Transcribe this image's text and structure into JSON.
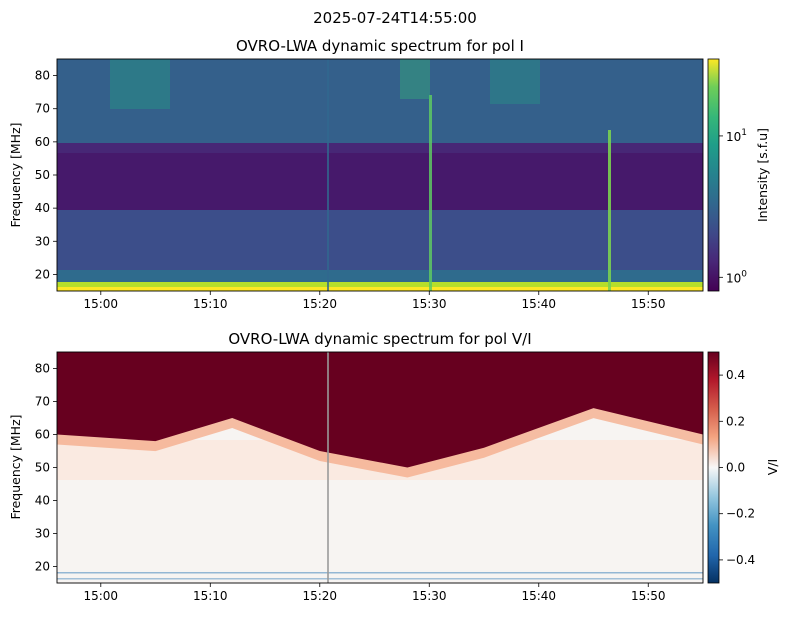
{
  "figure": {
    "suptitle": "2025-07-24T14:55:00"
  },
  "chart_data": [
    {
      "type": "heatmap",
      "title": "OVRO-LWA dynamic spectrum for pol I",
      "xlabel": "",
      "ylabel": "Frequency [MHz]",
      "x_range": [
        "14:56",
        "15:55"
      ],
      "ylim": [
        15,
        85
      ],
      "x_ticks": [
        "15:00",
        "15:10",
        "15:20",
        "15:30",
        "15:40",
        "15:50"
      ],
      "y_ticks": [
        20,
        30,
        40,
        50,
        60,
        70,
        80
      ],
      "colormap": "viridis",
      "colorbar": {
        "label": "Intensity [s.f.u]",
        "scale": "log",
        "range": [
          0.8,
          35
        ],
        "ticks": [
          {
            "base": "10",
            "exp": "0",
            "value": 1
          },
          {
            "base": "10",
            "exp": "1",
            "value": 10
          }
        ]
      },
      "features": {
        "bright_bursts_at": [
          "15:30",
          "15:46"
        ],
        "low_band_bright_mhz": [
          15,
          17
        ],
        "dark_band_mhz": [
          40,
          55
        ],
        "gap_line_at": "15:21"
      }
    },
    {
      "type": "heatmap",
      "title": "OVRO-LWA dynamic spectrum for pol V/I",
      "xlabel": "",
      "ylabel": "Frequency [MHz]",
      "x_range": [
        "14:56",
        "15:55"
      ],
      "ylim": [
        15,
        85
      ],
      "x_ticks": [
        "15:00",
        "15:10",
        "15:20",
        "15:30",
        "15:40",
        "15:50"
      ],
      "y_ticks": [
        20,
        30,
        40,
        50,
        60,
        70,
        80
      ],
      "colormap": "RdBu_r",
      "colorbar": {
        "label": "V/I",
        "scale": "linear",
        "range": [
          -0.5,
          0.5
        ],
        "ticks": [
          "0.4",
          "0.2",
          "0.0",
          "−0.2",
          "−0.4"
        ],
        "tick_values": [
          0.4,
          0.2,
          0.0,
          -0.2,
          -0.4
        ]
      },
      "features": {
        "boundary_mhz_by_time": [
          [
            "14:56",
            60
          ],
          [
            "15:05",
            58
          ],
          [
            "15:12",
            65
          ],
          [
            "15:20",
            55
          ],
          [
            "15:28",
            50
          ],
          [
            "15:35",
            56
          ],
          [
            "15:45",
            68
          ],
          [
            "15:55",
            60
          ]
        ],
        "gap_line_at": "15:21"
      }
    }
  ]
}
